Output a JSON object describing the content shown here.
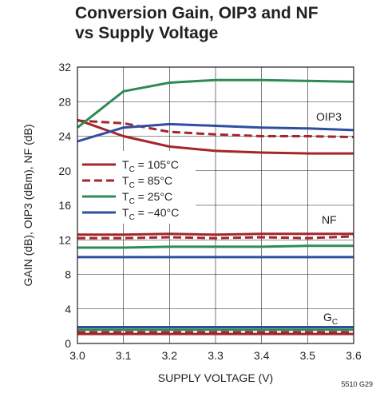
{
  "title_line1": "Conversion Gain, OIP3 and NF",
  "title_line2": "vs Supply Voltage",
  "figure_code": "5510 G29",
  "chart_data": {
    "type": "line",
    "xlabel": "SUPPLY VOLTAGE (V)",
    "ylabel": "GAIN (dB), OIP3 (dBm), NF (dB)",
    "xlim": [
      3.0,
      3.6
    ],
    "ylim": [
      0,
      32
    ],
    "xticks": [
      "3.0",
      "3.1",
      "3.2",
      "3.3",
      "3.4",
      "3.5",
      "3.6"
    ],
    "yticks": [
      "0",
      "4",
      "8",
      "12",
      "16",
      "20",
      "24",
      "28",
      "32"
    ],
    "grid": true,
    "legend_position": "left-middle",
    "annotations": {
      "oip3": "OIP3",
      "nf": "NF",
      "gc_main": "G",
      "gc_sub": "C"
    },
    "x": [
      3.0,
      3.1,
      3.2,
      3.3,
      3.4,
      3.5,
      3.6
    ],
    "series": [
      {
        "name": "TC = 105°C",
        "label_prefix": "T",
        "label_sub": "C",
        "label_rest": " = 105°C",
        "color": "#a3262b",
        "dash": "solid",
        "groups": {
          "OIP3": [
            25.9,
            24.0,
            22.8,
            22.3,
            22.1,
            22.0,
            22.0
          ],
          "NF": [
            12.6,
            12.6,
            12.7,
            12.6,
            12.7,
            12.7,
            12.7
          ],
          "GC": [
            1.1,
            1.1,
            1.1,
            1.1,
            1.1,
            1.1,
            1.1
          ]
        }
      },
      {
        "name": "TC = 85°C",
        "label_prefix": "T",
        "label_sub": "C",
        "label_rest": " = 85°C",
        "color": "#a3262b",
        "dash": "dashed",
        "groups": {
          "OIP3": [
            25.8,
            25.5,
            24.5,
            24.2,
            24.0,
            24.0,
            23.9
          ],
          "NF": [
            12.2,
            12.2,
            12.3,
            12.2,
            12.3,
            12.2,
            12.4
          ],
          "GC": [
            1.3,
            1.3,
            1.3,
            1.3,
            1.3,
            1.3,
            1.3
          ]
        }
      },
      {
        "name": "TC = 25°C",
        "label_prefix": "T",
        "label_sub": "C",
        "label_rest": " = 25°C",
        "color": "#2e8b57",
        "dash": "solid",
        "groups": {
          "OIP3": [
            25.0,
            29.2,
            30.2,
            30.5,
            30.5,
            30.4,
            30.3
          ],
          "NF": [
            11.1,
            11.1,
            11.2,
            11.2,
            11.2,
            11.3,
            11.3
          ],
          "GC": [
            1.6,
            1.6,
            1.6,
            1.6,
            1.6,
            1.6,
            1.6
          ]
        }
      },
      {
        "name": "TC = −40°C",
        "label_prefix": "T",
        "label_sub": "C",
        "label_rest": " = −40°C",
        "color": "#2e4ea1",
        "dash": "solid",
        "groups": {
          "OIP3": [
            23.4,
            25.0,
            25.4,
            25.2,
            25.0,
            24.9,
            24.7
          ],
          "NF": [
            10.0,
            10.0,
            10.0,
            10.0,
            10.0,
            10.0,
            10.0
          ],
          "GC": [
            1.9,
            1.9,
            1.9,
            1.9,
            1.9,
            1.9,
            1.9
          ]
        }
      }
    ]
  }
}
